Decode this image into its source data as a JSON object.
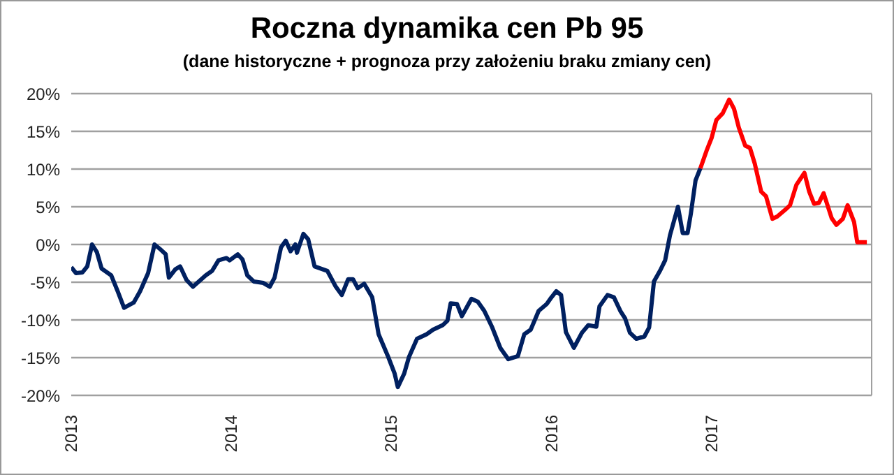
{
  "chart_data": {
    "type": "line",
    "title": "Roczna dynamika cen Pb 95",
    "subtitle": "(dane historyczne + prognoza przy założeniu braku zmiany cen)",
    "xlim": [
      2013,
      2018
    ],
    "xticks": [
      2013,
      2014,
      2015,
      2016,
      2017
    ],
    "ylim": [
      -20,
      20
    ],
    "yticks": [
      {
        "value": -20,
        "label": "-20%"
      },
      {
        "value": -15,
        "label": "-15%"
      },
      {
        "value": -10,
        "label": "-10%"
      },
      {
        "value": -5,
        "label": "-5%"
      },
      {
        "value": 0,
        "label": "0%"
      },
      {
        "value": 5,
        "label": "5%"
      },
      {
        "value": 10,
        "label": "10%"
      },
      {
        "value": 15,
        "label": "15%"
      },
      {
        "value": 20,
        "label": "20%"
      }
    ],
    "grid": "y",
    "marker": "none",
    "line_style": "solid",
    "series": [
      {
        "color": "#002060",
        "x": [
          2013.0,
          2013.03,
          2013.07,
          2013.1,
          2013.13,
          2013.16,
          2013.19,
          2013.25,
          2013.29,
          2013.33,
          2013.39,
          2013.43,
          2013.48,
          2013.52,
          2013.56,
          2013.59,
          2013.61,
          2013.65,
          2013.68,
          2013.72,
          2013.76,
          2013.84,
          2013.88,
          2013.92,
          2013.97,
          2013.99,
          2014.04,
          2014.07,
          2014.1,
          2014.14,
          2014.2,
          2014.24,
          2014.27,
          2014.31,
          2014.34,
          2014.37,
          2014.4,
          2014.41,
          2014.45,
          2014.48,
          2014.52,
          2014.56,
          2014.6,
          2014.65,
          2014.69,
          2014.73,
          2014.76,
          2014.79,
          2014.83,
          2014.88,
          2014.92,
          2014.98,
          2015.02,
          2015.04,
          2015.08,
          2015.11,
          2015.16,
          2015.22,
          2015.26,
          2015.32,
          2015.35,
          2015.37,
          2015.41,
          2015.44,
          2015.5,
          2015.54,
          2015.58,
          2015.63,
          2015.68,
          2015.73,
          2015.79,
          2015.83,
          2015.87,
          2015.92,
          2015.97,
          2016.0,
          2016.03,
          2016.06,
          2016.09,
          2016.14,
          2016.19,
          2016.23,
          2016.28,
          2016.3,
          2016.35,
          2016.39,
          2016.43,
          2016.46,
          2016.49,
          2016.53,
          2016.58,
          2016.61,
          2016.64,
          2016.68,
          2016.71,
          2016.74,
          2016.79,
          2016.82,
          2016.85,
          2016.87,
          2016.9,
          2016.93
        ],
        "values": [
          -3.0,
          -3.8,
          -3.7,
          -2.9,
          0.0,
          -1.0,
          -3.2,
          -4.1,
          -6.2,
          -8.4,
          -7.7,
          -6.2,
          -3.8,
          0.0,
          -0.7,
          -1.3,
          -4.4,
          -3.3,
          -2.9,
          -4.7,
          -5.6,
          -4.1,
          -3.5,
          -2.1,
          -1.8,
          -2.1,
          -1.3,
          -2.0,
          -4.1,
          -4.9,
          -5.1,
          -5.6,
          -4.4,
          -0.4,
          0.5,
          -0.9,
          0.0,
          -1.1,
          1.4,
          0.7,
          -2.9,
          -3.2,
          -3.5,
          -5.5,
          -6.7,
          -4.6,
          -4.6,
          -5.8,
          -5.2,
          -7.0,
          -11.9,
          -14.9,
          -17.1,
          -18.9,
          -17.1,
          -14.9,
          -12.5,
          -11.9,
          -11.3,
          -10.7,
          -10.1,
          -7.8,
          -7.9,
          -9.5,
          -7.2,
          -7.6,
          -8.8,
          -11.0,
          -13.7,
          -15.2,
          -14.8,
          -11.9,
          -11.3,
          -8.8,
          -7.9,
          -7.0,
          -6.2,
          -6.7,
          -11.6,
          -13.7,
          -11.7,
          -10.7,
          -10.9,
          -8.2,
          -6.7,
          -7.0,
          -8.8,
          -9.8,
          -11.7,
          -12.5,
          -12.2,
          -11.0,
          -4.9,
          -3.4,
          -2.1,
          1.2,
          5.0,
          1.5,
          1.5,
          4.0,
          8.5,
          10.1
        ]
      },
      {
        "color": "#ff0000",
        "x": [
          2016.93,
          2016.97,
          2017.0,
          2017.03,
          2017.07,
          2017.11,
          2017.14,
          2017.17,
          2017.21,
          2017.24,
          2017.27,
          2017.31,
          2017.34,
          2017.38,
          2017.41,
          2017.46,
          2017.49,
          2017.53,
          2017.58,
          2017.61,
          2017.64,
          2017.67,
          2017.7,
          2017.75,
          2017.78,
          2017.82,
          2017.85,
          2017.89,
          2017.91,
          2017.97
        ],
        "values": [
          10.1,
          12.5,
          14.1,
          16.5,
          17.4,
          19.2,
          18.0,
          15.5,
          13.1,
          12.8,
          10.7,
          7.0,
          6.4,
          3.4,
          3.7,
          4.6,
          5.2,
          7.9,
          9.5,
          7.0,
          5.4,
          5.5,
          6.8,
          3.5,
          2.6,
          3.4,
          5.2,
          3.0,
          0.3,
          0.3
        ]
      }
    ]
  }
}
